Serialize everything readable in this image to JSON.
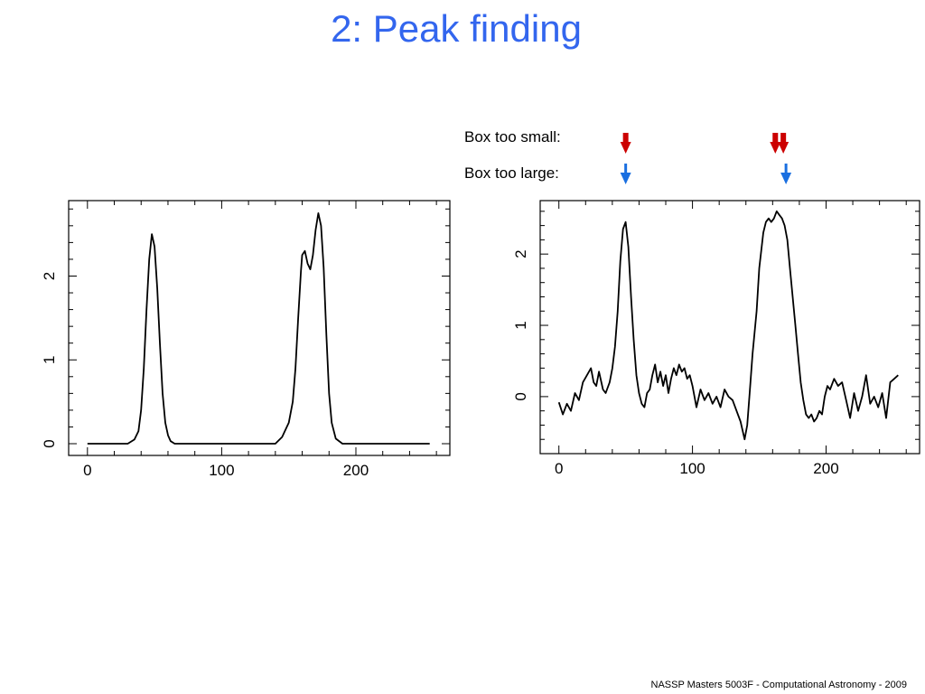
{
  "slide": {
    "title": "2: Peak finding",
    "footer": "NASSP Masters 5003F - Computational Astronomy - 2009"
  },
  "legend": {
    "small_label": "Box too small:",
    "large_label": "Box too large:",
    "small_color": "#cc0000",
    "large_color": "#1a6fe0",
    "small_marker_x": [
      50,
      162,
      168
    ],
    "large_marker_x": [
      50,
      170
    ]
  },
  "chart_data": [
    {
      "type": "line",
      "title": "",
      "xlabel": "",
      "ylabel": "",
      "xlim": [
        -14,
        270
      ],
      "ylim": [
        -0.14,
        2.9
      ],
      "xticks": [
        0,
        100,
        200
      ],
      "yticks": [
        0,
        1,
        2
      ],
      "grid": false,
      "series": [
        {
          "x": [
            0,
            30,
            35,
            38,
            40,
            42,
            44,
            46,
            48,
            50,
            52,
            54,
            56,
            58,
            60,
            62,
            65,
            70,
            100,
            140,
            145,
            150,
            153,
            155,
            157,
            159,
            160,
            162,
            164,
            166,
            168,
            170,
            172,
            174,
            176,
            178,
            180,
            182,
            185,
            190,
            200,
            255
          ],
          "y": [
            0,
            0,
            0.05,
            0.15,
            0.4,
            0.9,
            1.6,
            2.2,
            2.5,
            2.35,
            1.85,
            1.2,
            0.6,
            0.25,
            0.1,
            0.03,
            0,
            0,
            0,
            0,
            0.08,
            0.25,
            0.5,
            0.9,
            1.5,
            2.05,
            2.25,
            2.3,
            2.15,
            2.08,
            2.25,
            2.55,
            2.75,
            2.6,
            2.1,
            1.3,
            0.6,
            0.25,
            0.06,
            0,
            0,
            0
          ]
        }
      ]
    },
    {
      "type": "line",
      "title": "",
      "xlabel": "",
      "ylabel": "",
      "xlim": [
        -14,
        270
      ],
      "ylim": [
        -0.8,
        2.75
      ],
      "xticks": [
        0,
        100,
        200
      ],
      "yticks": [
        0,
        1,
        2
      ],
      "grid": false,
      "series": [
        {
          "x": [
            0,
            3,
            6,
            9,
            12,
            15,
            18,
            21,
            24,
            26,
            28,
            30,
            33,
            35,
            38,
            40,
            42,
            44,
            46,
            48,
            50,
            52,
            54,
            56,
            58,
            60,
            62,
            64,
            66,
            68,
            70,
            72,
            74,
            76,
            78,
            80,
            82,
            84,
            86,
            88,
            90,
            92,
            94,
            96,
            98,
            100,
            103,
            106,
            109,
            112,
            115,
            118,
            121,
            124,
            127,
            130,
            133,
            136,
            139,
            141,
            143,
            145,
            148,
            150,
            153,
            155,
            157,
            159,
            161,
            163,
            165,
            167,
            169,
            171,
            173,
            175,
            177,
            179,
            181,
            183,
            185,
            187,
            189,
            191,
            193,
            195,
            197,
            199,
            201,
            203,
            206,
            209,
            212,
            215,
            218,
            221,
            224,
            227,
            230,
            233,
            236,
            239,
            242,
            245,
            248,
            251,
            254
          ],
          "y": [
            -0.08,
            -0.25,
            -0.1,
            -0.2,
            0.05,
            -0.05,
            0.2,
            0.3,
            0.4,
            0.2,
            0.15,
            0.35,
            0.1,
            0.05,
            0.2,
            0.4,
            0.7,
            1.2,
            1.9,
            2.35,
            2.45,
            2.1,
            1.4,
            0.8,
            0.3,
            0.05,
            -0.1,
            -0.15,
            0.05,
            0.1,
            0.3,
            0.45,
            0.2,
            0.35,
            0.15,
            0.3,
            0.05,
            0.25,
            0.4,
            0.3,
            0.45,
            0.35,
            0.4,
            0.25,
            0.3,
            0.15,
            -0.15,
            0.1,
            -0.05,
            0.05,
            -0.1,
            0.0,
            -0.15,
            0.1,
            0.0,
            -0.05,
            -0.2,
            -0.35,
            -0.6,
            -0.4,
            0.1,
            0.6,
            1.2,
            1.8,
            2.3,
            2.45,
            2.5,
            2.45,
            2.5,
            2.6,
            2.55,
            2.5,
            2.4,
            2.2,
            1.8,
            1.4,
            1.0,
            0.6,
            0.2,
            -0.05,
            -0.25,
            -0.3,
            -0.25,
            -0.35,
            -0.3,
            -0.2,
            -0.25,
            0.0,
            0.15,
            0.1,
            0.25,
            0.15,
            0.2,
            -0.05,
            -0.3,
            0.05,
            -0.2,
            0.0,
            0.3,
            -0.1,
            0.0,
            -0.15,
            0.05,
            -0.3,
            0.2,
            0.25,
            0.3
          ]
        }
      ]
    }
  ]
}
